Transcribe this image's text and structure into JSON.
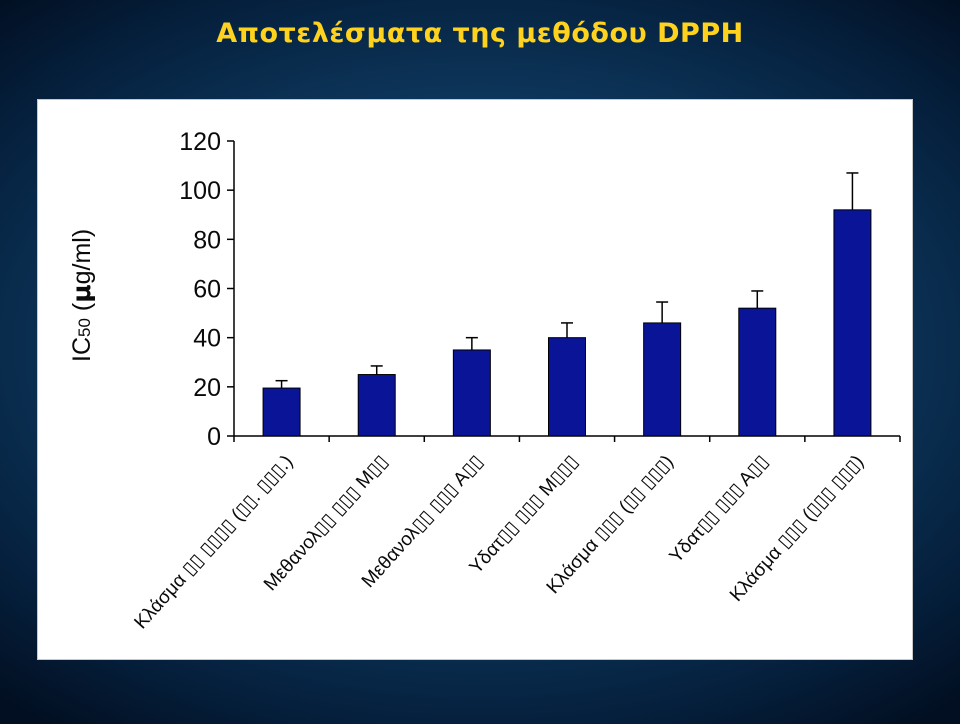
{
  "slide": {
    "title": "Αποτελέσματα της μεθόδου DPPH"
  },
  "chart_data": {
    "type": "bar",
    "title": "",
    "xlabel": "",
    "ylabel": "IC50 (μg/ml)",
    "ylabel_parts": {
      "main": "IC",
      "sub": "50",
      "rest": " (",
      "mu": "μ",
      "end": "g/ml)"
    },
    "ylim": [
      0,
      120
    ],
    "yticks": [
      0,
      20,
      40,
      60,
      80,
      100,
      120
    ],
    "grid": false,
    "categories": [
      "Κλάσμα \u0000\u0000 \u0000\u0000\u0000\u0000 (\u0000\u0000. \u0000\u0000\u0000.)",
      "Μεθανολ\u0000\u0000 \u0000\u0000\u0000 Μ\u0000\u0000",
      "Μεθανολ\u0000\u0000 \u0000\u0000\u0000 Α\u0000\u0000",
      "Υδατ\u0000\u0000 \u0000\u0000\u0000 Μ\u0000\u0000\u0000",
      "Κλάσμα \u0000\u0000\u0000 (\u0000\u0000 \u0000\u0000\u0000)",
      "Υδατ\u0000\u0000 \u0000\u0000\u0000 Α\u0000\u0000",
      "Κλάσμα \u0000\u0000\u0000 (\u0000\u0000\u0000 \u0000\u0000\u0000)"
    ],
    "series": [
      {
        "values": [
          19.5,
          25,
          35,
          40,
          46,
          52,
          92
        ],
        "error": [
          3,
          3.5,
          5,
          6,
          8.5,
          7,
          15
        ]
      }
    ],
    "colors": {
      "bar": "#0a1496",
      "bar_edge": "#000000",
      "axis": "#000000"
    }
  }
}
